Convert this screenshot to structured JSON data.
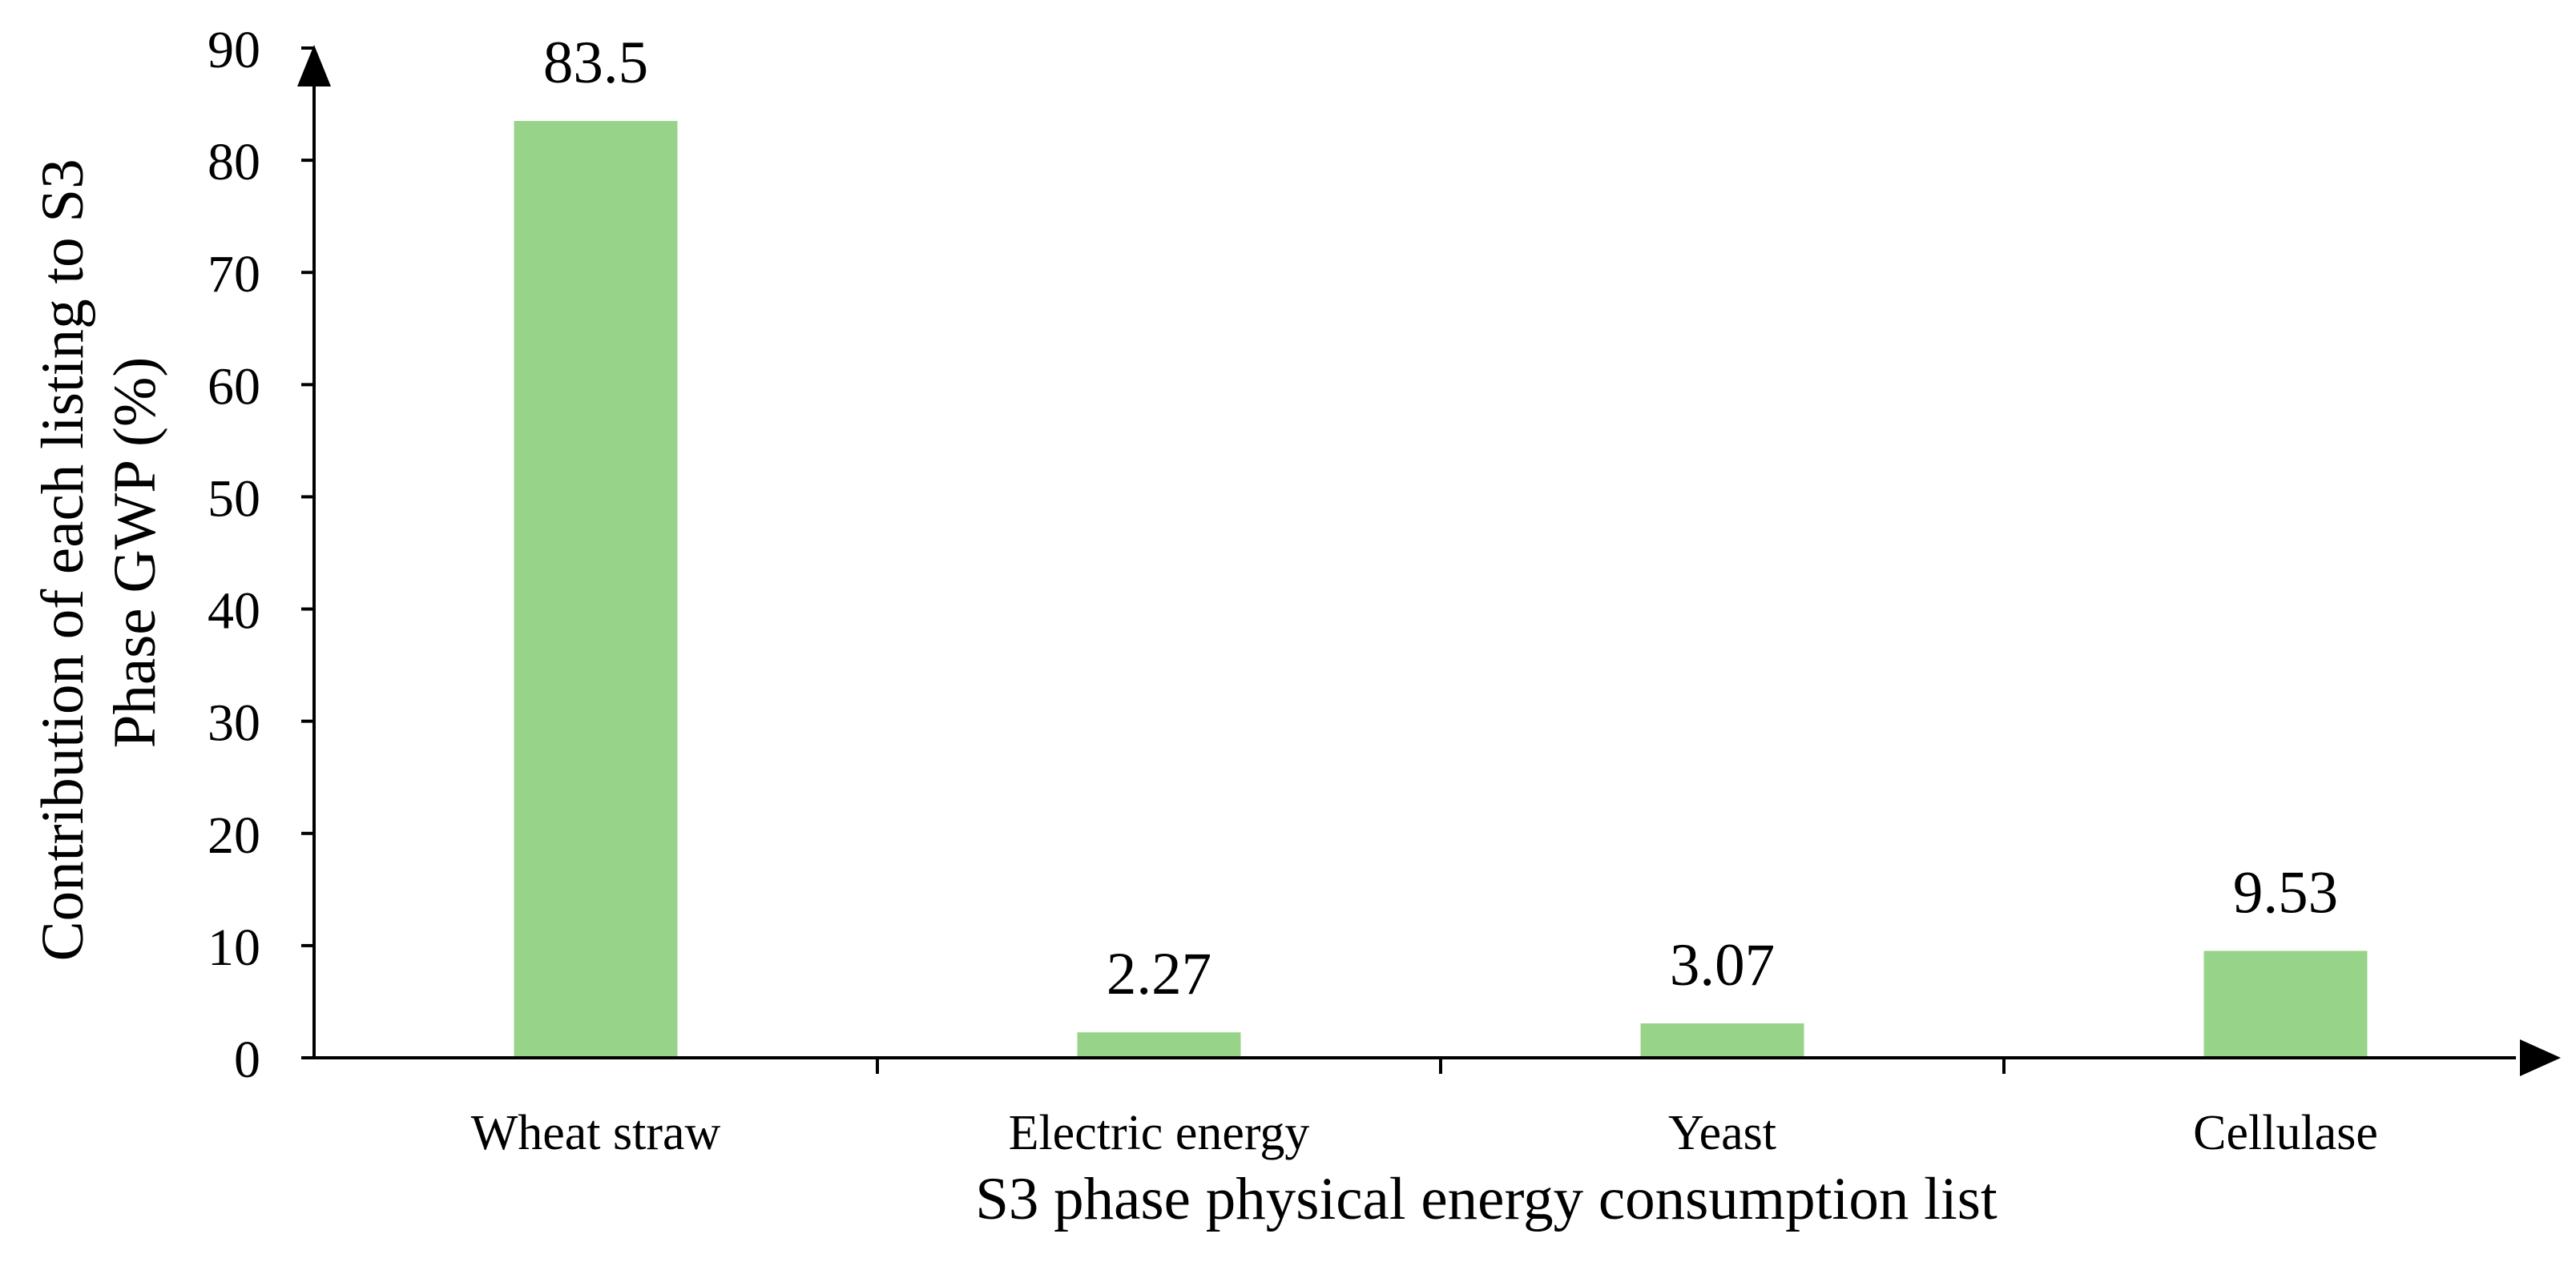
{
  "chart_data": {
    "type": "bar",
    "title": "",
    "categories": [
      "Wheat straw",
      "Electric energy",
      "Yeast",
      "Cellulase"
    ],
    "values": [
      83.5,
      2.27,
      3.07,
      9.53
    ],
    "value_labels": [
      "83.5",
      "2.27",
      "3.07",
      "9.53"
    ],
    "xlabel": "S3 phase physical energy consumption list",
    "ylabel_lines": [
      "Contribution of each listing to S3",
      "Phase GWP (%)"
    ],
    "ylim": [
      0,
      90
    ],
    "yticks": [
      0,
      10,
      20,
      30,
      40,
      50,
      60,
      70,
      80,
      90
    ],
    "grid": false,
    "legend": "none",
    "bar_color": "#98d38a",
    "axis_color": "#000000"
  }
}
